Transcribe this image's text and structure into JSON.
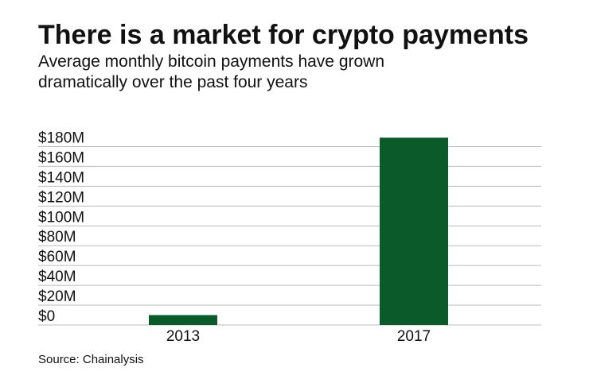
{
  "chart_data": {
    "type": "bar",
    "title": "There is a market for crypto payments",
    "subtitle": [
      "Average monthly bitcoin payments have grown",
      "dramatically over the past four years"
    ],
    "source": "Source: Chainalysis",
    "categories": [
      "2013",
      "2017"
    ],
    "values": [
      10,
      189
    ],
    "color": "#0a5a2a",
    "ylim": [
      0,
      190
    ],
    "yticks": [
      {
        "value": 0,
        "label": "$0"
      },
      {
        "value": 20,
        "label": "$20M"
      },
      {
        "value": 40,
        "label": "$40M"
      },
      {
        "value": 60,
        "label": "$60M"
      },
      {
        "value": 80,
        "label": "$80M"
      },
      {
        "value": 100,
        "label": "$100M"
      },
      {
        "value": 120,
        "label": "$120M"
      },
      {
        "value": 140,
        "label": "$140M"
      },
      {
        "value": 160,
        "label": "$160M"
      },
      {
        "value": 180,
        "label": "$180M"
      }
    ],
    "grid": true
  }
}
